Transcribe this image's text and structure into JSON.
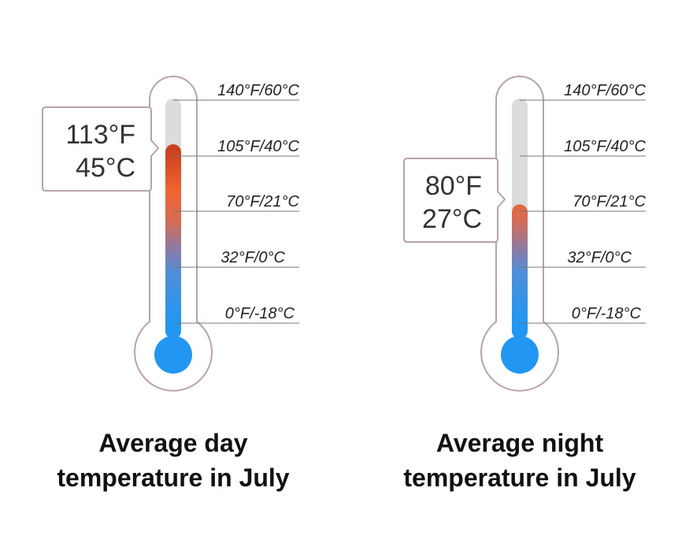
{
  "thermometers": [
    {
      "reading": {
        "f": "113°F",
        "c": "45°C"
      },
      "fill_fraction": 0.81,
      "ticks": [
        "140°F/60°C",
        "105°F/40°C",
        "70°F/21°C",
        "32°F/0°C",
        "0°F/-18°C"
      ],
      "caption": [
        "Average day",
        "temperature in July"
      ]
    },
    {
      "reading": {
        "f": "80°F",
        "c": "27°C"
      },
      "fill_fraction": 0.56,
      "ticks": [
        "140°F/60°C",
        "105°F/40°C",
        "70°F/21°C",
        "32°F/0°C",
        "0°F/-18°C"
      ],
      "caption": [
        "Average night",
        "temperature in July"
      ]
    }
  ],
  "colors": {
    "outline": "#b9a3a3",
    "tube_empty": "#dcdcdc",
    "cold": "#2196f3",
    "warm": "#ef5b2b",
    "hot": "#b5321c",
    "tick_line": "#777777"
  }
}
